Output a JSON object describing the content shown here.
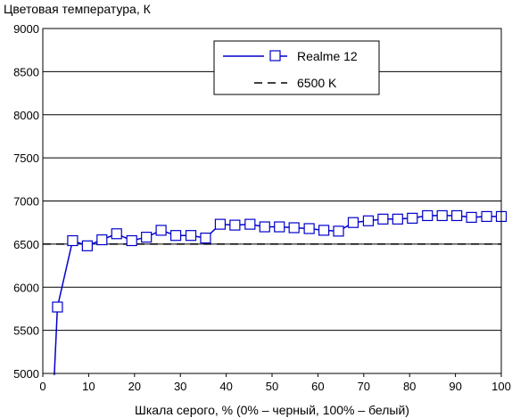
{
  "chart_data": {
    "type": "line",
    "title": "",
    "ylabel": "Цветовая температура, К",
    "xlabel": "Шкала серого, % (0% – черный, 100% – белый)",
    "xlim": [
      0,
      100
    ],
    "ylim": [
      5000,
      9000
    ],
    "xticks": [
      0,
      10,
      20,
      30,
      40,
      50,
      60,
      70,
      80,
      90,
      100
    ],
    "yticks": [
      5000,
      5500,
      6000,
      6500,
      7000,
      7500,
      8000,
      8500,
      9000
    ],
    "grid": "horizontal",
    "legend_position": "top-right",
    "series": [
      {
        "name": "Realme 12",
        "color": "#0000cc",
        "marker": "square",
        "x": [
          2.5,
          3.2,
          6.5,
          9.7,
          12.9,
          16.1,
          19.4,
          22.6,
          25.8,
          29.0,
          32.3,
          35.5,
          38.7,
          41.9,
          45.2,
          48.4,
          51.6,
          54.8,
          58.1,
          61.3,
          64.5,
          67.7,
          71.0,
          74.2,
          77.4,
          80.6,
          83.9,
          87.1,
          90.3,
          93.5,
          96.8,
          100.0
        ],
        "y": [
          4980,
          5770,
          6540,
          6480,
          6550,
          6620,
          6540,
          6580,
          6660,
          6600,
          6600,
          6570,
          6730,
          6720,
          6730,
          6700,
          6700,
          6690,
          6680,
          6660,
          6650,
          6750,
          6770,
          6790,
          6790,
          6800,
          6830,
          6830,
          6830,
          6810,
          6820,
          6820
        ],
        "marker_start_index": 1
      },
      {
        "name": "6500 K",
        "color": "#000000",
        "style": "dashed",
        "x": [
          0,
          100
        ],
        "y": [
          6500,
          6500
        ]
      }
    ]
  }
}
